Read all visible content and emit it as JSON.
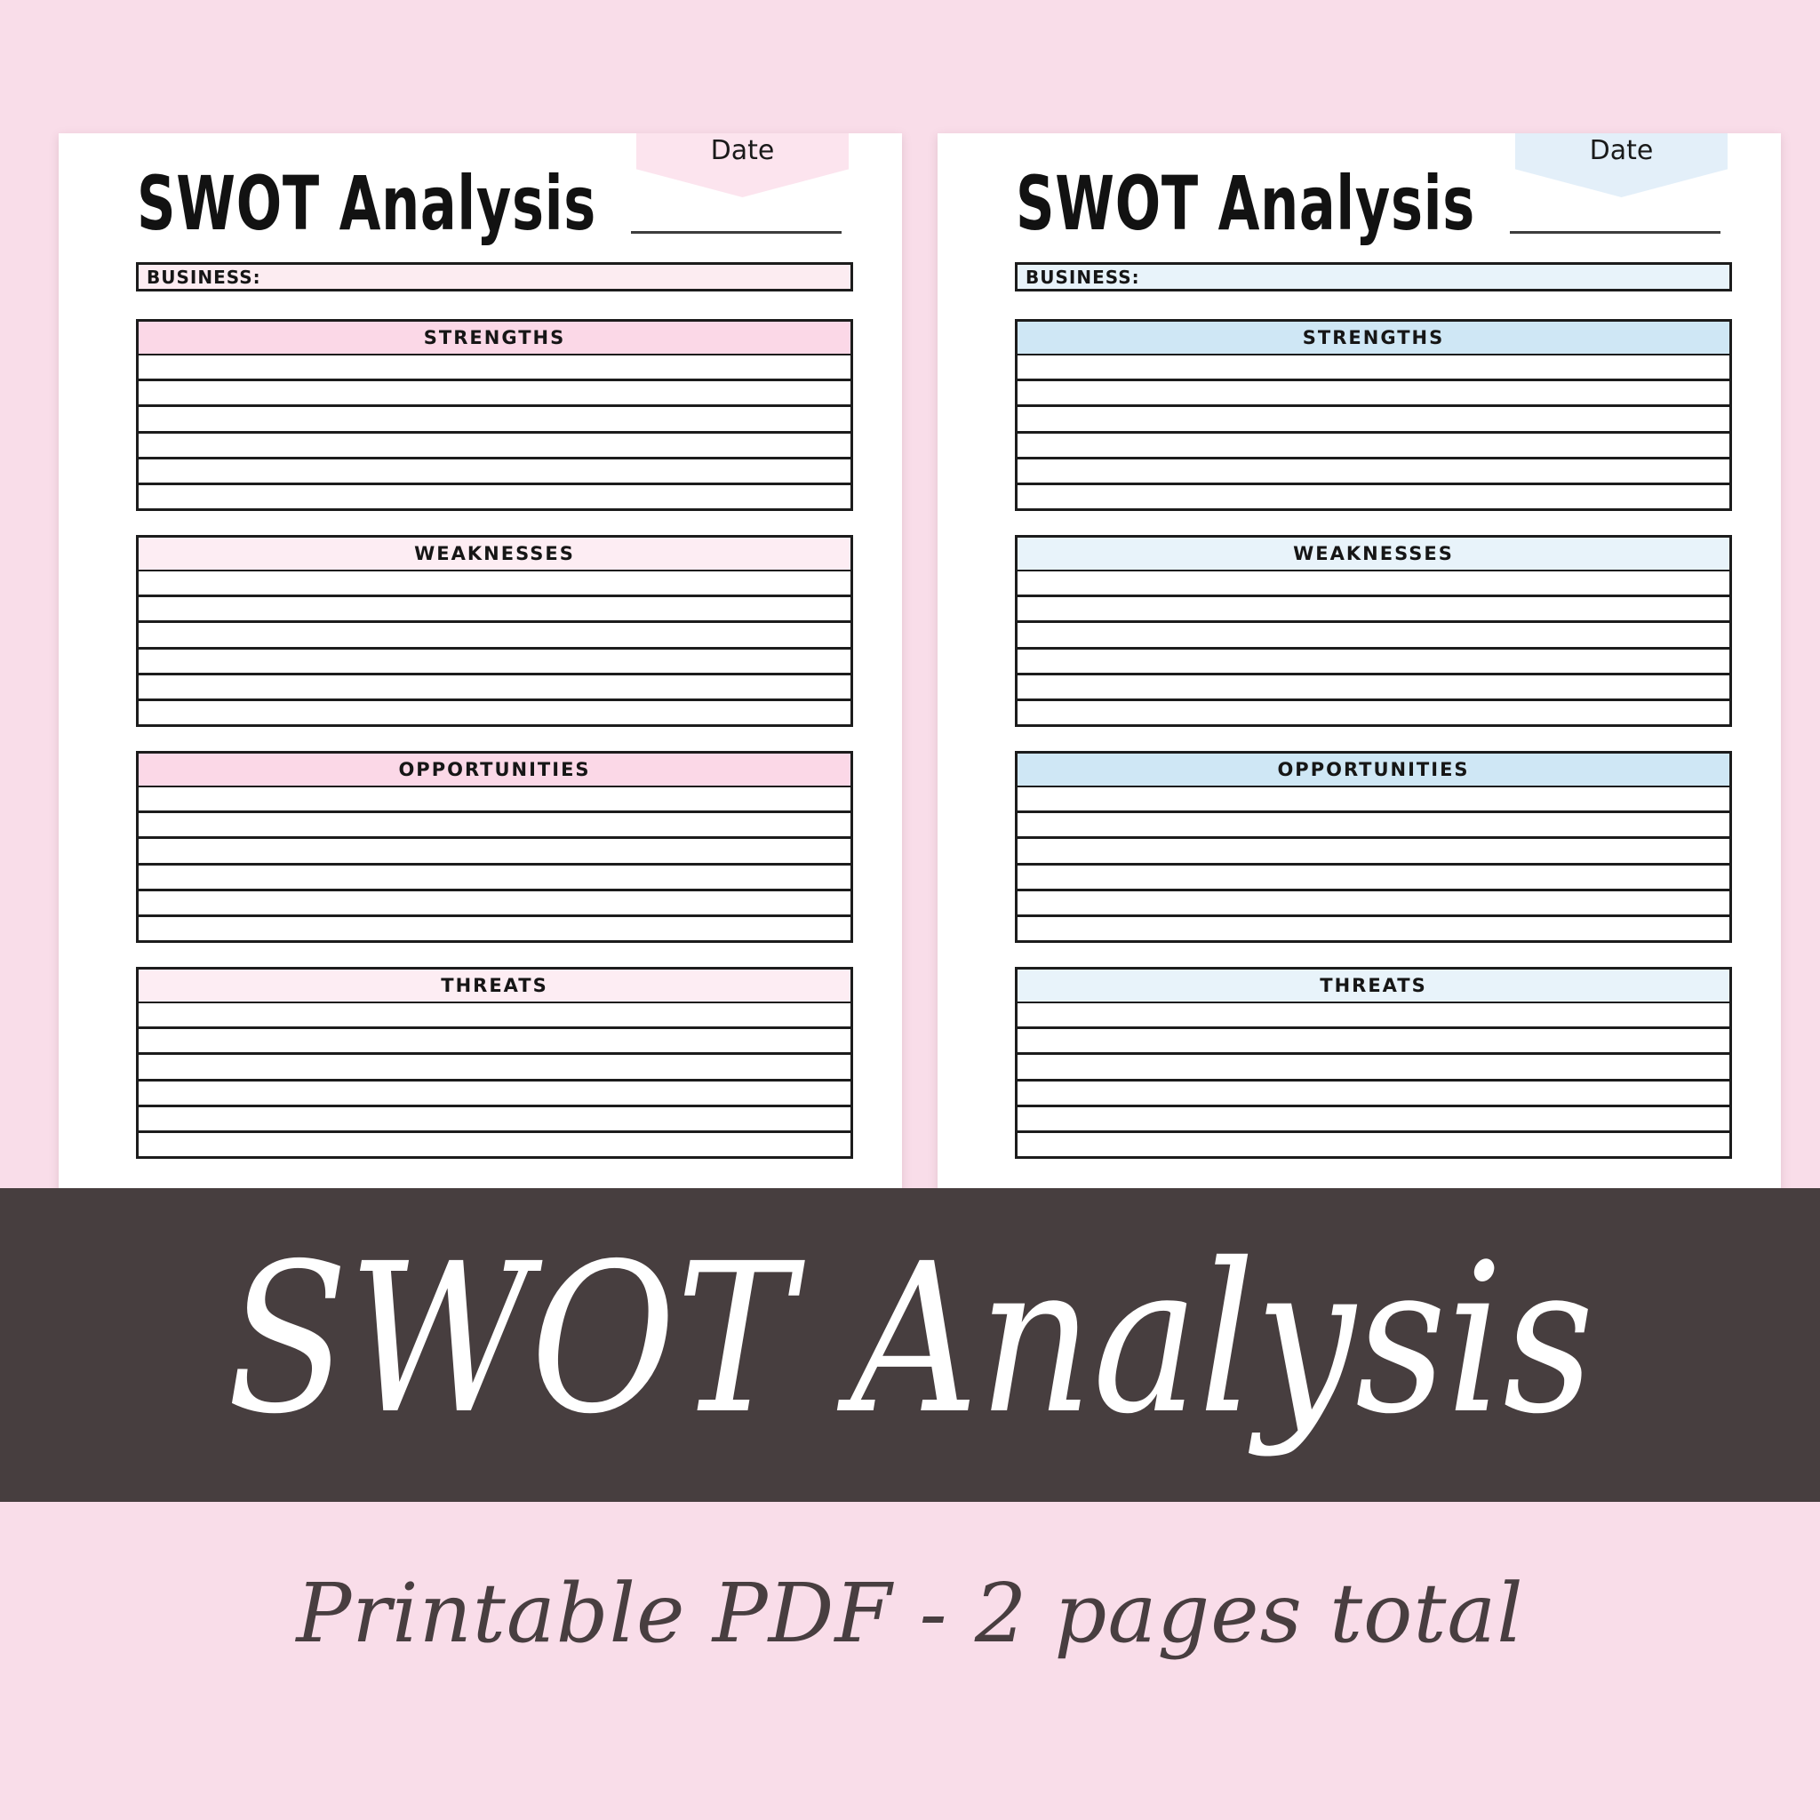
{
  "background_color": "#f9dde9",
  "pages": [
    {
      "id": "pink-page",
      "title": "SWOT Analysis",
      "date_label": "Date",
      "business_label": "BUSINESS:",
      "theme": {
        "ribbon_fill": "#fce4ee",
        "business_fill": "#fcecf1",
        "header_strong_fill": "#fbd8e7",
        "header_light_fill": "#fdedf3"
      },
      "sections": [
        {
          "label": "STRENGTHS",
          "tone": "strong",
          "ruled_lines": 6
        },
        {
          "label": "WEAKNESSES",
          "tone": "light",
          "ruled_lines": 6
        },
        {
          "label": "OPPORTUNITIES",
          "tone": "strong",
          "ruled_lines": 6
        },
        {
          "label": "THREATS",
          "tone": "light",
          "ruled_lines": 6
        }
      ]
    },
    {
      "id": "blue-page",
      "title": "SWOT Analysis",
      "date_label": "Date",
      "business_label": "BUSINESS:",
      "theme": {
        "ribbon_fill": "#e3eff9",
        "business_fill": "#e8f3fa",
        "header_strong_fill": "#cfe7f5",
        "header_light_fill": "#e8f3fa"
      },
      "sections": [
        {
          "label": "STRENGTHS",
          "tone": "strong",
          "ruled_lines": 6
        },
        {
          "label": "WEAKNESSES",
          "tone": "light",
          "ruled_lines": 6
        },
        {
          "label": "OPPORTUNITIES",
          "tone": "strong",
          "ruled_lines": 6
        },
        {
          "label": "THREATS",
          "tone": "light",
          "ruled_lines": 6
        }
      ]
    }
  ],
  "banner": {
    "text": "SWOT Analysis",
    "background_color": "#473e3f",
    "text_color": "#ffffff"
  },
  "footer": {
    "text": "Printable PDF - 2 pages total",
    "text_color": "#483e40"
  }
}
